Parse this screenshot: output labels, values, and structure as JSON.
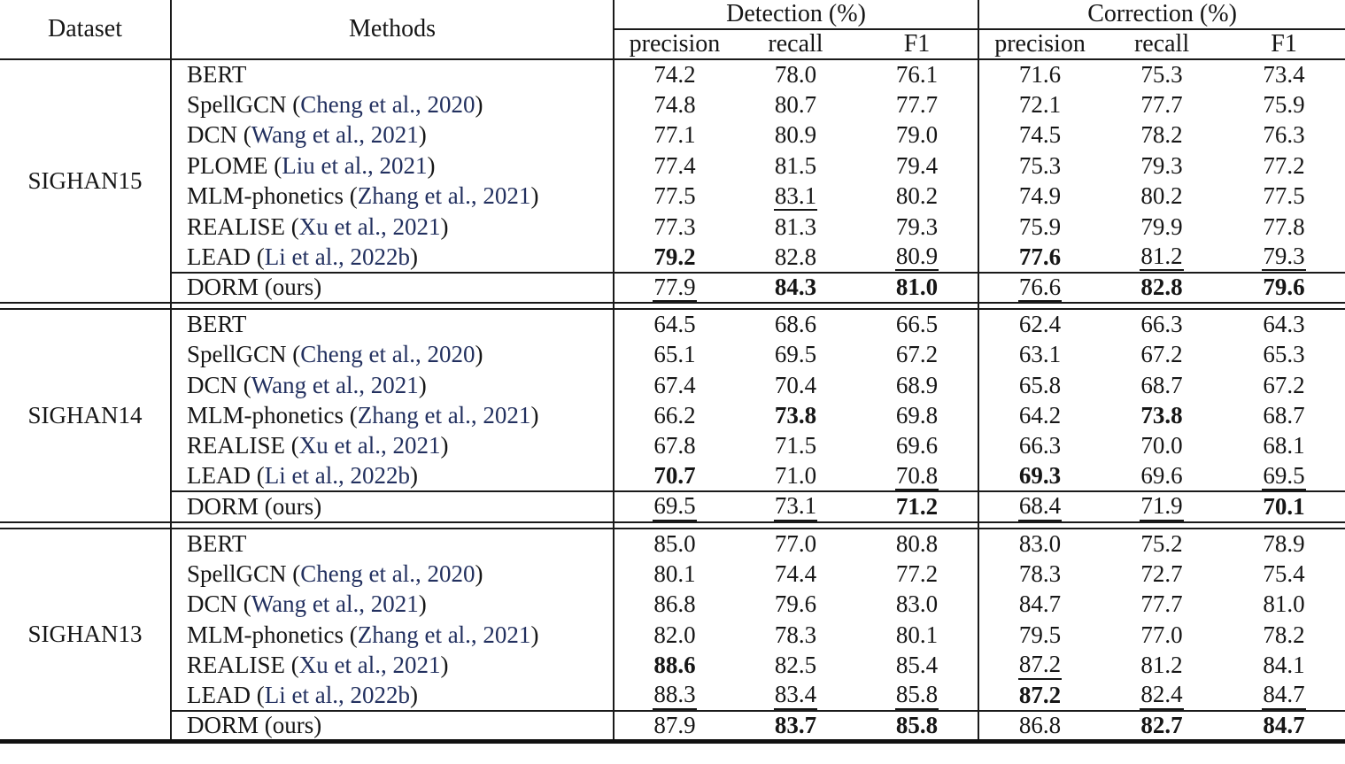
{
  "colors": {
    "citation": "#22305f",
    "text": "#161616",
    "rule": "#1a1a1a"
  },
  "header": {
    "dataset_label": "Dataset",
    "methods_label": "Methods",
    "group_labels": {
      "detection": "Detection (%)",
      "correction": "Correction (%)"
    },
    "metric_labels": [
      "precision",
      "recall",
      "F1"
    ]
  },
  "sections": [
    {
      "dataset": "SIGHAN15",
      "rows": [
        {
          "method": "BERT",
          "cite": null,
          "suffix": null,
          "ours": false,
          "values": [
            "74.2",
            "78.0",
            "76.1",
            "71.6",
            "75.3",
            "73.4"
          ],
          "styles": [
            "",
            "",
            "",
            "",
            "",
            ""
          ]
        },
        {
          "method": "SpellGCN",
          "cite": "Cheng et al., 2020",
          "suffix": null,
          "ours": false,
          "values": [
            "74.8",
            "80.7",
            "77.7",
            "72.1",
            "77.7",
            "75.9"
          ],
          "styles": [
            "",
            "",
            "",
            "",
            "",
            ""
          ]
        },
        {
          "method": "DCN",
          "cite": "Wang et al., 2021",
          "suffix": null,
          "ours": false,
          "values": [
            "77.1",
            "80.9",
            "79.0",
            "74.5",
            "78.2",
            "76.3"
          ],
          "styles": [
            "",
            "",
            "",
            "",
            "",
            ""
          ]
        },
        {
          "method": "PLOME",
          "cite": "Liu et al., 2021",
          "suffix": null,
          "ours": false,
          "values": [
            "77.4",
            "81.5",
            "79.4",
            "75.3",
            "79.3",
            "77.2"
          ],
          "styles": [
            "",
            "",
            "",
            "",
            "",
            ""
          ]
        },
        {
          "method": "MLM-phonetics",
          "cite": "Zhang et al., 2021",
          "suffix": null,
          "ours": false,
          "values": [
            "77.5",
            "83.1",
            "80.2",
            "74.9",
            "80.2",
            "77.5"
          ],
          "styles": [
            "",
            "u",
            "",
            "",
            "",
            ""
          ]
        },
        {
          "method": "REALISE",
          "cite": "Xu et al., 2021",
          "suffix": null,
          "ours": false,
          "values": [
            "77.3",
            "81.3",
            "79.3",
            "75.9",
            "79.9",
            "77.8"
          ],
          "styles": [
            "",
            "",
            "",
            "",
            "",
            ""
          ]
        },
        {
          "method": "LEAD",
          "cite": "Li et al., 2022b",
          "suffix": null,
          "ours": false,
          "values": [
            "79.2",
            "82.8",
            "80.9",
            "77.6",
            "81.2",
            "79.3"
          ],
          "styles": [
            "b",
            "",
            "u",
            "b",
            "u",
            "u"
          ]
        },
        {
          "method": "DORM",
          "cite": null,
          "suffix": "ours",
          "ours": true,
          "values": [
            "77.9",
            "84.3",
            "81.0",
            "76.6",
            "82.8",
            "79.6"
          ],
          "styles": [
            "u",
            "b",
            "b",
            "u",
            "b",
            "b"
          ]
        }
      ]
    },
    {
      "dataset": "SIGHAN14",
      "rows": [
        {
          "method": "BERT",
          "cite": null,
          "suffix": null,
          "ours": false,
          "values": [
            "64.5",
            "68.6",
            "66.5",
            "62.4",
            "66.3",
            "64.3"
          ],
          "styles": [
            "",
            "",
            "",
            "",
            "",
            ""
          ]
        },
        {
          "method": "SpellGCN",
          "cite": "Cheng et al., 2020",
          "suffix": null,
          "ours": false,
          "values": [
            "65.1",
            "69.5",
            "67.2",
            "63.1",
            "67.2",
            "65.3"
          ],
          "styles": [
            "",
            "",
            "",
            "",
            "",
            ""
          ]
        },
        {
          "method": "DCN",
          "cite": "Wang et al., 2021",
          "suffix": null,
          "ours": false,
          "values": [
            "67.4",
            "70.4",
            "68.9",
            "65.8",
            "68.7",
            "67.2"
          ],
          "styles": [
            "",
            "",
            "",
            "",
            "",
            ""
          ]
        },
        {
          "method": "MLM-phonetics",
          "cite": "Zhang et al., 2021",
          "suffix": null,
          "ours": false,
          "values": [
            "66.2",
            "73.8",
            "69.8",
            "64.2",
            "73.8",
            "68.7"
          ],
          "styles": [
            "",
            "b",
            "",
            "",
            "b",
            ""
          ]
        },
        {
          "method": "REALISE",
          "cite": "Xu et al., 2021",
          "suffix": null,
          "ours": false,
          "values": [
            "67.8",
            "71.5",
            "69.6",
            "66.3",
            "70.0",
            "68.1"
          ],
          "styles": [
            "",
            "",
            "",
            "",
            "",
            ""
          ]
        },
        {
          "method": "LEAD",
          "cite": "Li et al., 2022b",
          "suffix": null,
          "ours": false,
          "values": [
            "70.7",
            "71.0",
            "70.8",
            "69.3",
            "69.6",
            "69.5"
          ],
          "styles": [
            "b",
            "",
            "u",
            "b",
            "",
            "u"
          ]
        },
        {
          "method": "DORM",
          "cite": null,
          "suffix": "ours",
          "ours": true,
          "values": [
            "69.5",
            "73.1",
            "71.2",
            "68.4",
            "71.9",
            "70.1"
          ],
          "styles": [
            "u",
            "u",
            "b",
            "u",
            "u",
            "b"
          ]
        }
      ]
    },
    {
      "dataset": "SIGHAN13",
      "rows": [
        {
          "method": "BERT",
          "cite": null,
          "suffix": null,
          "ours": false,
          "values": [
            "85.0",
            "77.0",
            "80.8",
            "83.0",
            "75.2",
            "78.9"
          ],
          "styles": [
            "",
            "",
            "",
            "",
            "",
            ""
          ]
        },
        {
          "method": "SpellGCN",
          "cite": "Cheng et al., 2020",
          "suffix": null,
          "ours": false,
          "values": [
            "80.1",
            "74.4",
            "77.2",
            "78.3",
            "72.7",
            "75.4"
          ],
          "styles": [
            "",
            "",
            "",
            "",
            "",
            ""
          ]
        },
        {
          "method": "DCN",
          "cite": "Wang et al., 2021",
          "suffix": null,
          "ours": false,
          "values": [
            "86.8",
            "79.6",
            "83.0",
            "84.7",
            "77.7",
            "81.0"
          ],
          "styles": [
            "",
            "",
            "",
            "",
            "",
            ""
          ]
        },
        {
          "method": "MLM-phonetics",
          "cite": "Zhang et al., 2021",
          "suffix": null,
          "ours": false,
          "values": [
            "82.0",
            "78.3",
            "80.1",
            "79.5",
            "77.0",
            "78.2"
          ],
          "styles": [
            "",
            "",
            "",
            "",
            "",
            ""
          ]
        },
        {
          "method": "REALISE",
          "cite": "Xu et al., 2021",
          "suffix": null,
          "ours": false,
          "values": [
            "88.6",
            "82.5",
            "85.4",
            "87.2",
            "81.2",
            "84.1"
          ],
          "styles": [
            "b",
            "",
            "",
            "u",
            "",
            ""
          ]
        },
        {
          "method": "LEAD",
          "cite": "Li et al., 2022b",
          "suffix": null,
          "ours": false,
          "values": [
            "88.3",
            "83.4",
            "85.8",
            "87.2",
            "82.4",
            "84.7"
          ],
          "styles": [
            "u",
            "u",
            "u",
            "b",
            "u",
            "u"
          ]
        },
        {
          "method": "DORM",
          "cite": null,
          "suffix": "ours",
          "ours": true,
          "values": [
            "87.9",
            "83.7",
            "85.8",
            "86.8",
            "82.7",
            "84.7"
          ],
          "styles": [
            "",
            "b",
            "b",
            "",
            "b",
            "b"
          ]
        }
      ]
    }
  ]
}
